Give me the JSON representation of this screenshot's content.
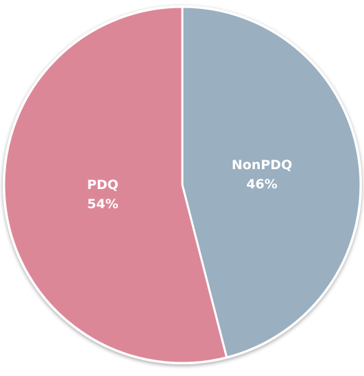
{
  "chart_data": {
    "type": "pie",
    "categories": [
      "NonPDQ",
      "PDQ"
    ],
    "values": [
      46,
      54
    ],
    "value_labels": [
      "46%",
      "54%"
    ],
    "colors": [
      "#9aafc0",
      "#dc8797"
    ]
  }
}
